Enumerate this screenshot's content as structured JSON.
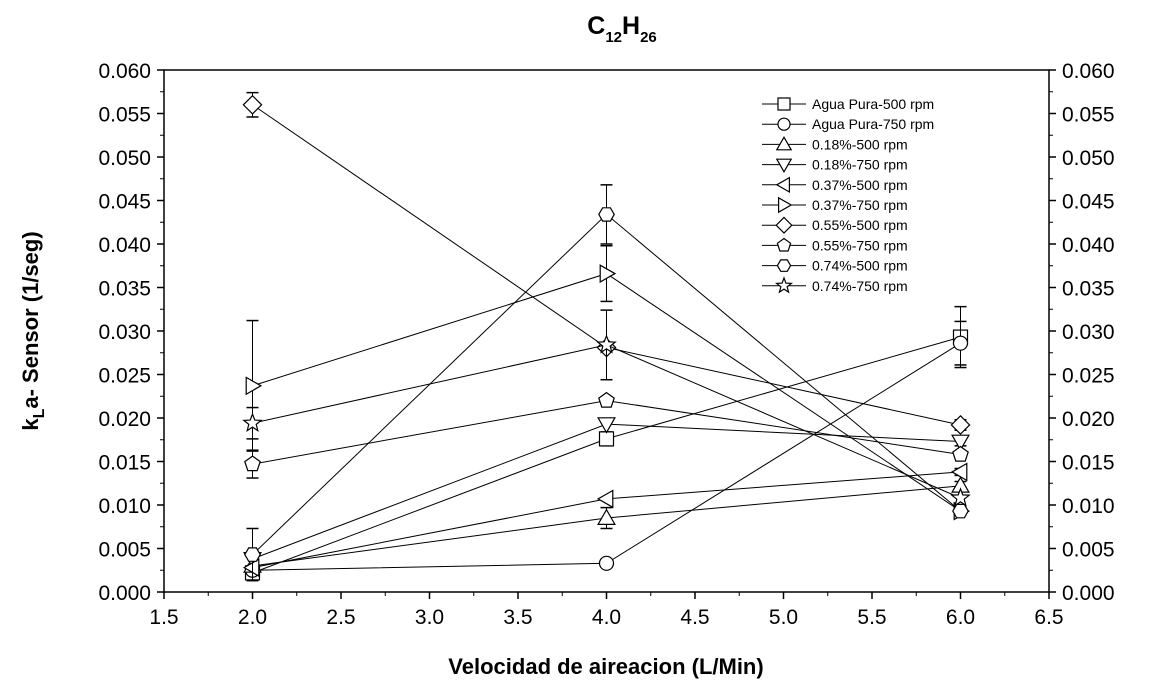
{
  "chart_data": {
    "type": "line",
    "title": {
      "main": "C",
      "sub1": "12",
      "mid": "H",
      "sub2": "26"
    },
    "xlabel": "Velocidad de aireacion (L/Min)",
    "ylabel": {
      "pre": "k",
      "sub": "L",
      "post": "a- Sensor (1/seg)"
    },
    "xlim": [
      1.5,
      6.5
    ],
    "ylim": [
      0.0,
      0.06
    ],
    "x_ticks": [
      "1.5",
      "2.0",
      "2.5",
      "3.0",
      "3.5",
      "4.0",
      "4.5",
      "5.0",
      "5.5",
      "6.0",
      "6.5"
    ],
    "y_ticks": [
      "0.000",
      "0.005",
      "0.010",
      "0.015",
      "0.020",
      "0.025",
      "0.030",
      "0.035",
      "0.040",
      "0.045",
      "0.050",
      "0.055",
      "0.060"
    ],
    "grid": false,
    "legend_position": "top-right",
    "x": [
      2.0,
      4.0,
      6.0
    ],
    "series": [
      {
        "name": "Agua Pura-500 rpm",
        "marker": "square",
        "values": [
          0.0022,
          0.0176,
          0.0293
        ],
        "errors": [
          0.0004,
          0.0008,
          0.0035
        ]
      },
      {
        "name": "Agua Pura-750 rpm",
        "marker": "circle",
        "values": [
          0.0025,
          0.0033,
          0.0286
        ],
        "errors": [
          0.0003,
          0.0003,
          0.0025
        ]
      },
      {
        "name": "0.18%-500 rpm",
        "marker": "triangle-up",
        "values": [
          0.003,
          0.0085,
          0.0122
        ],
        "errors": [
          0.0,
          0.0012,
          0.0005
        ]
      },
      {
        "name": "0.18%-750 rpm",
        "marker": "triangle-down",
        "values": [
          0.0038,
          0.0193,
          0.0173
        ],
        "errors": [
          0.0,
          0.0,
          0.0005
        ]
      },
      {
        "name": "0.37%-500 rpm",
        "marker": "triangle-left",
        "values": [
          0.0028,
          0.0107,
          0.0138
        ],
        "errors": [
          0.0,
          0.0,
          0.0004
        ]
      },
      {
        "name": "0.37%-750 rpm",
        "marker": "triangle-right",
        "values": [
          0.0237,
          0.0366,
          0.0093
        ],
        "errors": [
          0.0075,
          0.0032,
          0.0
        ]
      },
      {
        "name": "0.55%-500 rpm",
        "marker": "diamond",
        "values": [
          0.056,
          0.0281,
          0.0192
        ],
        "errors": [
          0.0014,
          0.0,
          0.0006
        ]
      },
      {
        "name": "0.55%-750 rpm",
        "marker": "pentagon",
        "values": [
          0.0147,
          0.022,
          0.0158
        ],
        "errors": [
          0.0016,
          0.0,
          0.0
        ]
      },
      {
        "name": "0.74%-500 rpm",
        "marker": "hexagon",
        "values": [
          0.0043,
          0.0434,
          0.0093
        ],
        "errors": [
          0.003,
          0.0034,
          0.0
        ]
      },
      {
        "name": "0.74%-750 rpm",
        "marker": "star",
        "values": [
          0.0194,
          0.0284,
          0.0108
        ],
        "errors": [
          0.0018,
          0.004,
          0.0
        ]
      }
    ]
  }
}
